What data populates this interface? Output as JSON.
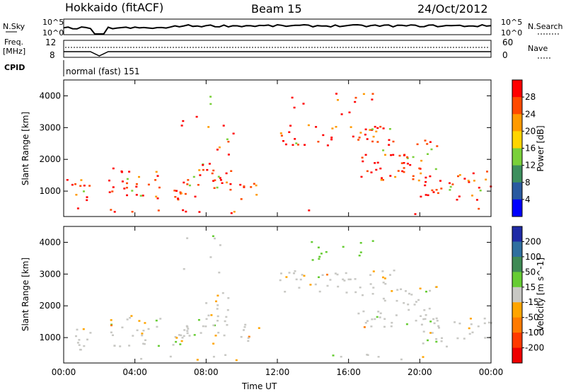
{
  "header": {
    "station": "Hokkaido (fitACF)",
    "beam": "Beam 15",
    "date": "24/Oct/2012"
  },
  "strip_labels": {
    "nsky": "N.Sky",
    "nsearch": "N.Search",
    "freq_line1": "Freq.",
    "freq_line2": "[MHz]",
    "nave": "Nave",
    "cpid": "CPID",
    "cpid_value": "normal (fast) 151",
    "nsky_top": "10^5",
    "nsky_bottom": "10^0",
    "freq_top": "12",
    "freq_bottom": "8",
    "nave_top": "60",
    "nave_bottom": "0",
    "nsearch_top": "10^5",
    "nsearch_bottom": "10^0"
  },
  "chart_data": [
    {
      "type": "heatmap",
      "title": "Power",
      "ylabel": "Slant Range [km]",
      "xlabel": "Time UT",
      "ylim": [
        200,
        4500
      ],
      "yticks": [
        "1000",
        "2000",
        "3000",
        "4000"
      ],
      "colorbar": {
        "label": "Power [dB]",
        "ticks": [
          "28",
          "24",
          "20",
          "16",
          "12",
          "8",
          "4"
        ],
        "colors": [
          "#ff0000",
          "#ff4a00",
          "#ff9a00",
          "#ffd500",
          "#7ad03a",
          "#3d8f5e",
          "#2a5aa0",
          "#0000ff"
        ]
      }
    },
    {
      "type": "heatmap",
      "title": "Velocity",
      "ylabel": "Slant Range [km]",
      "xlabel": "Time UT",
      "ylim": [
        200,
        4500
      ],
      "yticks": [
        "1000",
        "2000",
        "3000",
        "4000"
      ],
      "colorbar": {
        "label": "Velocity [m s^-1]",
        "ticks": [
          "200",
          "100",
          "50",
          "15",
          "-15",
          "-50",
          "-100",
          "-200"
        ],
        "colors": [
          "#1f2ba6",
          "#2f6f9f",
          "#3f8a55",
          "#66cc33",
          "#c8c8c4",
          "#ffa500",
          "#ff7a00",
          "#ff3a00",
          "#ee0000"
        ]
      }
    }
  ],
  "xaxis": {
    "label": "Time UT",
    "ticks": [
      "00:00",
      "04:00",
      "08:00",
      "12:00",
      "16:00",
      "20:00",
      "00:00"
    ]
  }
}
